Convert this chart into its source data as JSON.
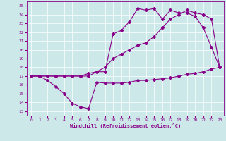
{
  "xlabel": "Windchill (Refroidissement éolien,°C)",
  "bg_color": "#cce8e8",
  "grid_color": "#ffffff",
  "line_color": "#880088",
  "xlim": [
    -0.5,
    23.5
  ],
  "ylim": [
    12.5,
    25.5
  ],
  "xticks": [
    0,
    1,
    2,
    3,
    4,
    5,
    6,
    7,
    8,
    9,
    10,
    11,
    12,
    13,
    14,
    15,
    16,
    17,
    18,
    19,
    20,
    21,
    22,
    23
  ],
  "yticks": [
    13,
    14,
    15,
    16,
    17,
    18,
    19,
    20,
    21,
    22,
    23,
    24,
    25
  ],
  "line1_x": [
    0,
    1,
    2,
    3,
    4,
    5,
    6,
    7,
    8,
    9,
    10,
    11,
    12,
    13,
    14,
    15,
    16,
    17,
    18,
    19,
    20,
    21,
    22,
    23
  ],
  "line1_y": [
    17.0,
    17.0,
    16.5,
    15.8,
    15.0,
    13.9,
    13.5,
    13.3,
    16.3,
    16.2,
    16.2,
    16.2,
    16.3,
    16.5,
    16.5,
    16.6,
    16.7,
    16.8,
    17.0,
    17.2,
    17.3,
    17.5,
    17.8,
    18.0
  ],
  "line2_x": [
    0,
    1,
    3,
    4,
    5,
    6,
    7,
    8,
    9,
    10,
    11,
    12,
    13,
    14,
    15,
    16,
    17,
    18,
    19,
    20,
    21,
    22,
    23
  ],
  "line2_y": [
    17.0,
    17.0,
    17.0,
    17.0,
    17.0,
    17.0,
    17.0,
    17.5,
    18.0,
    19.0,
    19.5,
    20.0,
    20.5,
    20.8,
    21.5,
    22.5,
    23.5,
    24.0,
    24.5,
    24.2,
    24.0,
    23.5,
    18.0
  ],
  "line3_x": [
    0,
    2,
    3,
    4,
    5,
    6,
    7,
    8,
    9,
    10,
    11,
    12,
    13,
    14,
    15,
    16,
    17,
    18,
    19,
    20,
    21,
    22,
    23
  ],
  "line3_y": [
    17.0,
    17.0,
    17.0,
    17.0,
    17.0,
    17.0,
    17.3,
    17.5,
    17.5,
    21.8,
    22.2,
    23.2,
    24.7,
    24.5,
    24.7,
    23.5,
    24.5,
    24.2,
    24.2,
    23.8,
    22.5,
    20.3,
    18.0
  ]
}
